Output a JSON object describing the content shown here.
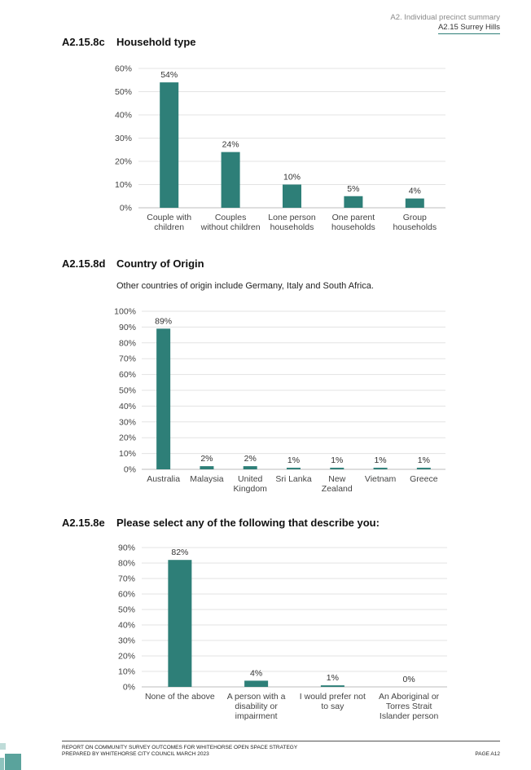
{
  "header": {
    "section": "A2. Individual precinct summary",
    "precinct": "A2.15 Surrey Hills"
  },
  "sections": [
    {
      "number": "A2.15.8c",
      "title": "Household type"
    },
    {
      "number": "A2.15.8d",
      "title": "Country of Origin",
      "note": "Other countries of origin include Germany, Italy and South Africa."
    },
    {
      "number": "A2.15.8e",
      "title": "Please select any of the following that describe you:"
    }
  ],
  "chart_data": [
    {
      "type": "bar",
      "title": "",
      "categories": [
        [
          "Couple with",
          "children"
        ],
        [
          "Couples",
          "without children"
        ],
        [
          "Lone person",
          "households"
        ],
        [
          "One parent",
          "households"
        ],
        [
          "Group",
          "households"
        ]
      ],
      "values": [
        54,
        24,
        10,
        5,
        4
      ],
      "data_labels": [
        "54%",
        "24%",
        "10%",
        "5%",
        "4%"
      ],
      "ylim": [
        0,
        60
      ],
      "yticks": [
        "0%",
        "10%",
        "20%",
        "30%",
        "40%",
        "50%",
        "60%"
      ],
      "grid": true,
      "color": "#2e7f78"
    },
    {
      "type": "bar",
      "title": "",
      "categories": [
        [
          "Australia"
        ],
        [
          "Malaysia"
        ],
        [
          "United",
          "Kingdom"
        ],
        [
          "Sri Lanka"
        ],
        [
          "New",
          "Zealand"
        ],
        [
          "Vietnam"
        ],
        [
          "Greece"
        ]
      ],
      "values": [
        89,
        2,
        2,
        1,
        1,
        1,
        1
      ],
      "data_labels": [
        "89%",
        "2%",
        "2%",
        "1%",
        "1%",
        "1%",
        "1%"
      ],
      "ylim": [
        0,
        100
      ],
      "yticks": [
        "0%",
        "10%",
        "20%",
        "30%",
        "40%",
        "50%",
        "60%",
        "70%",
        "80%",
        "90%",
        "100%"
      ],
      "grid": true,
      "color": "#2e7f78"
    },
    {
      "type": "bar",
      "title": "",
      "categories": [
        [
          "None of the above"
        ],
        [
          "A person with a",
          "disability or",
          "impairment"
        ],
        [
          "I would prefer not",
          "to say"
        ],
        [
          "An Aboriginal or",
          "Torres Strait",
          "Islander person"
        ]
      ],
      "values": [
        82,
        4,
        1,
        0
      ],
      "data_labels": [
        "82%",
        "4%",
        "1%",
        "0%"
      ],
      "ylim": [
        0,
        90
      ],
      "yticks": [
        "0%",
        "10%",
        "20%",
        "30%",
        "40%",
        "50%",
        "60%",
        "70%",
        "80%",
        "90%"
      ],
      "grid": true,
      "color": "#2e7f78"
    }
  ],
  "footer": {
    "line1": "REPORT ON COMMUNITY SURVEY OUTCOMES FOR WHITEHORSE OPEN SPACE STRATEGY",
    "line2": "PREPARED BY WHITEHORSE CITY COUNCIL MARCH 2023",
    "page": "PAGE A12"
  }
}
